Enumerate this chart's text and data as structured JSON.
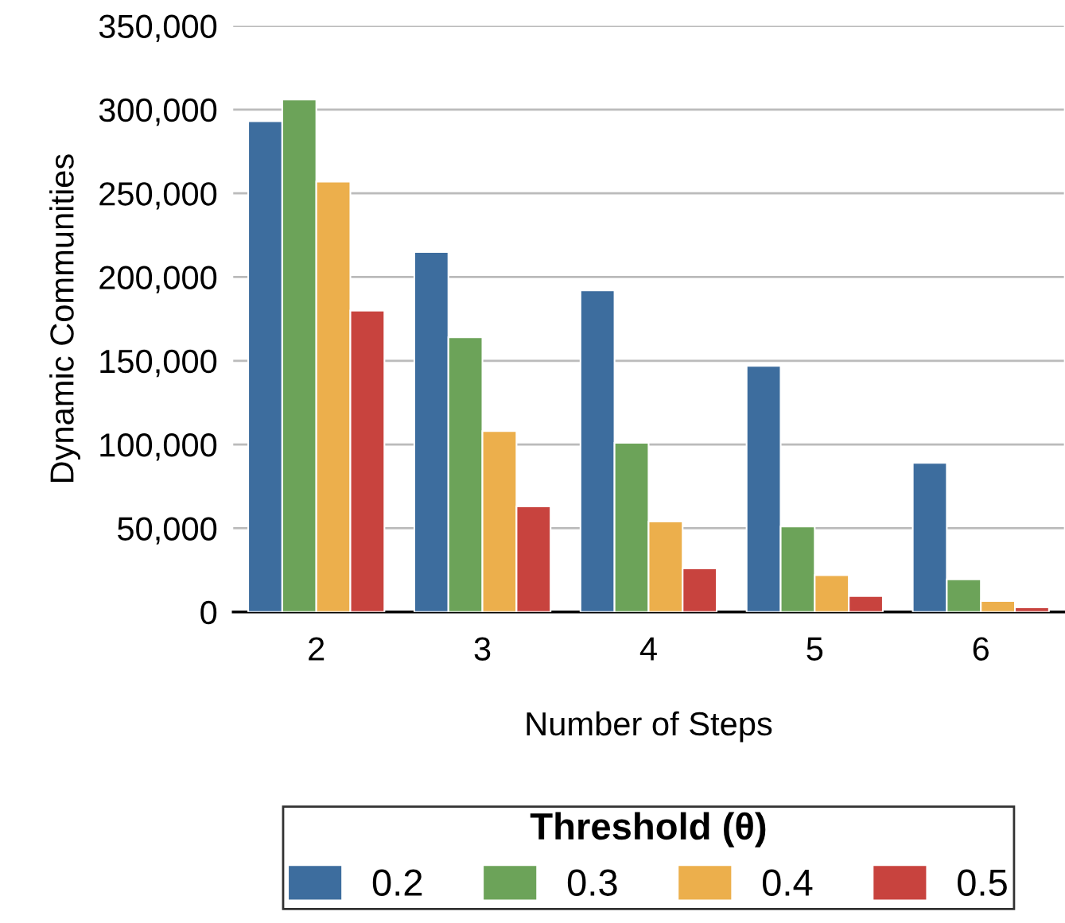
{
  "chart_data": {
    "type": "bar",
    "xlabel": "Number of Steps",
    "ylabel": "Dynamic Communities",
    "legend_title": "Threshold (θ)",
    "categories": [
      "2",
      "3",
      "4",
      "5",
      "6"
    ],
    "series": [
      {
        "name": "0.2",
        "color": "#3d6d9e",
        "values": [
          293000,
          215000,
          192000,
          147000,
          89000
        ]
      },
      {
        "name": "0.3",
        "color": "#6ca359",
        "values": [
          306000,
          164000,
          101000,
          51000,
          19500
        ]
      },
      {
        "name": "0.4",
        "color": "#ecaf4c",
        "values": [
          257000,
          108000,
          54000,
          22000,
          6600
        ]
      },
      {
        "name": "0.5",
        "color": "#c8433e",
        "values": [
          180000,
          63000,
          26000,
          9500,
          2800
        ]
      }
    ],
    "ylim": [
      0,
      350000
    ],
    "yticks": [
      {
        "value": 0,
        "label": "0"
      },
      {
        "value": 50000,
        "label": "50,000"
      },
      {
        "value": 100000,
        "label": "100,000"
      },
      {
        "value": 150000,
        "label": "150,000"
      },
      {
        "value": 200000,
        "label": "200,000"
      },
      {
        "value": 250000,
        "label": "250,000"
      },
      {
        "value": 300000,
        "label": "300,000"
      },
      {
        "value": 350000,
        "label": "350,000"
      }
    ],
    "grid": "y",
    "legend": "bottom"
  }
}
